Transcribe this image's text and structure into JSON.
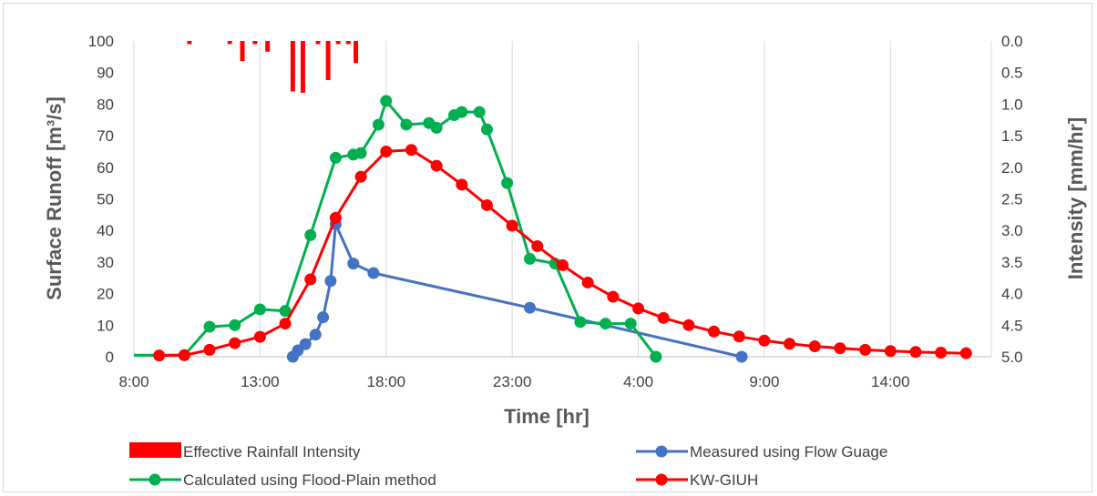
{
  "chart_data": {
    "type": "line",
    "x_unit": "hours",
    "xlabel": "Time [hr]",
    "ylabel": "Surface Runoff [m³/s]",
    "y2label": "Intensity [mm/hr]",
    "xlim": [
      8,
      42
    ],
    "xticks": [
      {
        "value": 8,
        "label": "8:00"
      },
      {
        "value": 13,
        "label": "13:00"
      },
      {
        "value": 18,
        "label": "18:00"
      },
      {
        "value": 23,
        "label": "23:00"
      },
      {
        "value": 28,
        "label": "4:00"
      },
      {
        "value": 33,
        "label": "9:00"
      },
      {
        "value": 38,
        "label": "14:00"
      }
    ],
    "ylim": [
      0,
      100
    ],
    "yticks": [
      0,
      10,
      20,
      30,
      40,
      50,
      60,
      70,
      80,
      90,
      100
    ],
    "y2lim": [
      0,
      5
    ],
    "y2ticks": [
      "0.0",
      "0.5",
      "1.0",
      "1.5",
      "2.0",
      "2.5",
      "3.0",
      "3.5",
      "4.0",
      "4.5",
      "5.0"
    ],
    "y2_inverted": true,
    "grid": "vertical",
    "legend_position": "bottom",
    "colors": {
      "rain": "#ff0000",
      "measured": "#4472c4",
      "flood": "#00b050",
      "kw": "#ff0000",
      "grid": "#d9d9d9",
      "axis": "#bfbfbf",
      "text": "#404040"
    },
    "bars": {
      "name": "Effective Rainfall Intensity",
      "width_hours": 0.18,
      "x": [
        10.2,
        11.8,
        12.3,
        12.8,
        13.3,
        14.3,
        14.7,
        15.3,
        15.7,
        16.1,
        16.5,
        16.8
      ],
      "values": [
        0.05,
        0.05,
        0.32,
        0.05,
        0.17,
        0.8,
        0.82,
        0.05,
        0.62,
        0.05,
        0.05,
        0.35
      ]
    },
    "series": [
      {
        "name": "Measured using Flow Guage",
        "key": "measured",
        "x": [
          14.3,
          14.5,
          14.8,
          15.2,
          15.5,
          15.8,
          16.0,
          16.7,
          17.5,
          23.7,
          32.1
        ],
        "y": [
          0,
          2,
          4,
          7,
          12.5,
          24,
          42,
          29.5,
          26.5,
          15.5,
          0
        ]
      },
      {
        "name": "Calculated using Flood-Plain method",
        "key": "flood",
        "x": [
          8.0,
          10.0,
          11.0,
          12.0,
          13.0,
          14.0,
          15.0,
          16.0,
          16.7,
          17.0,
          17.7,
          18.0,
          18.8,
          19.7,
          20.0,
          20.7,
          21.0,
          21.7,
          22.0,
          22.8,
          23.7,
          24.7,
          25.7,
          26.7,
          27.7,
          28.7
        ],
        "y": [
          0.5,
          0.5,
          9.5,
          10,
          15,
          14.5,
          38.5,
          63,
          64,
          64.5,
          73.5,
          81,
          73.5,
          74,
          72.5,
          76.5,
          77.5,
          77.5,
          72,
          55,
          31,
          29.5,
          11,
          10.5,
          10.5,
          0
        ]
      },
      {
        "name": "KW-GIUH",
        "key": "kw",
        "x": [
          9,
          10,
          11,
          12,
          13,
          14,
          15,
          16,
          17,
          18,
          19,
          20,
          21,
          22,
          23,
          24,
          25,
          26,
          27,
          28,
          29,
          30,
          31,
          32,
          33,
          34,
          35,
          36,
          37,
          38,
          39,
          40,
          41
        ],
        "y": [
          0.4,
          0.5,
          2.2,
          4.3,
          6.3,
          10.5,
          24.5,
          44,
          57,
          65,
          65.5,
          60.5,
          54.5,
          48,
          41.5,
          35,
          29,
          23.5,
          19,
          15.3,
          12.3,
          10,
          8,
          6.4,
          5.1,
          4.1,
          3.3,
          2.7,
          2.2,
          1.8,
          1.5,
          1.3,
          1.1
        ]
      }
    ]
  }
}
